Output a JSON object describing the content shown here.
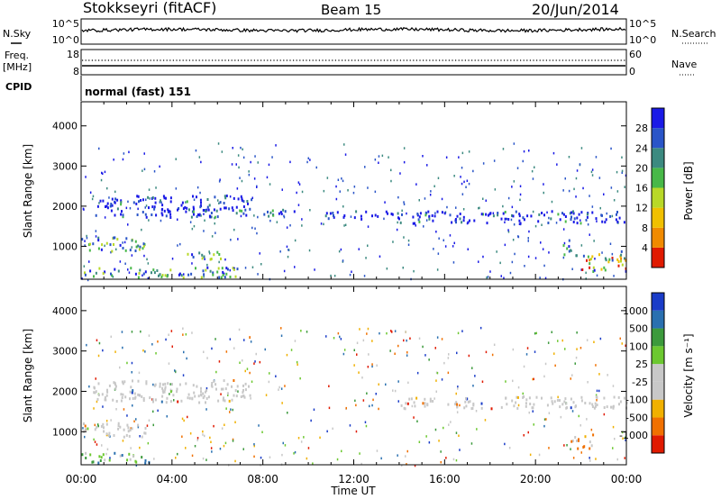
{
  "header": {
    "station": "Stokkseyri (fitACF)",
    "beam": "Beam 15",
    "date": "20/Jun/2014"
  },
  "params": {
    "nsky_label": "N.Sky",
    "nsky_top_tick": "10^5",
    "nsky_bottom_tick": "10^0",
    "nsearch_label": "N.Search",
    "nsearch_top_tick": "10^5",
    "nsearch_bottom_tick": "10^0",
    "freq_label": "Freq.",
    "freq_unit": "[MHz]",
    "freq_top_tick": "18",
    "freq_bottom_tick": "8",
    "nave_label": "Nave",
    "nave_top_tick": "60",
    "nave_bottom_tick": "0",
    "cpid_label": "CPID",
    "cpid_value": "normal (fast) 151"
  },
  "chart_data": [
    {
      "type": "heatmap",
      "name": "power",
      "ylabel": "Slant Range [km]",
      "ylim": [
        180,
        4600
      ],
      "y_ticks": [
        "1000",
        "2000",
        "3000",
        "4000"
      ],
      "colorbar_label": "Power [dB]",
      "colorbar_ticks": [
        "4",
        "8",
        "12",
        "16",
        "20",
        "24",
        "28"
      ],
      "colorbar_colors": [
        "#1a1ae6",
        "#2a55c8",
        "#3c8a80",
        "#48b848",
        "#b8d828",
        "#f0c000",
        "#f08a00",
        "#e01a00"
      ],
      "regions": [
        {
          "t": [
            0.5,
            7.5
          ],
          "r": [
            1750,
            2300
          ],
          "level": "low"
        },
        {
          "t": [
            8.0,
            9.5
          ],
          "r": [
            1700,
            1950
          ],
          "level": "low"
        },
        {
          "t": [
            10.5,
            14.0
          ],
          "r": [
            1700,
            1900
          ],
          "level": "low"
        },
        {
          "t": [
            14.0,
            24.0
          ],
          "r": [
            1600,
            1900
          ],
          "level": "low"
        },
        {
          "t": [
            0.0,
            2.8
          ],
          "r": [
            900,
            1250
          ],
          "level": "mixed"
        },
        {
          "t": [
            4.5,
            6.3
          ],
          "r": [
            700,
            900
          ],
          "level": "mixed"
        },
        {
          "t": [
            0.0,
            7.0
          ],
          "r": [
            250,
            500
          ],
          "level": "mixed"
        },
        {
          "t": [
            22.0,
            24.0
          ],
          "r": [
            400,
            900
          ],
          "level": "high"
        },
        {
          "t": [
            21.2,
            21.8
          ],
          "r": [
            800,
            1200
          ],
          "level": "mixed"
        }
      ]
    },
    {
      "type": "heatmap",
      "name": "velocity",
      "xlabel": "Time UT",
      "ylabel": "Slant Range [km]",
      "xlim": [
        0,
        24
      ],
      "ylim": [
        180,
        4600
      ],
      "x_ticks": [
        "00:00",
        "04:00",
        "08:00",
        "12:00",
        "16:00",
        "20:00",
        "00:00"
      ],
      "y_ticks": [
        "1000",
        "2000",
        "3000",
        "4000"
      ],
      "colorbar_label": "Velocity [m s⁻¹]",
      "colorbar_ticks": [
        "1000",
        "500",
        "100",
        "25",
        "-25",
        "-100",
        "-500",
        "-1000"
      ],
      "colorbar_colors": [
        "#1a3cc8",
        "#2a70b0",
        "#3c9a3c",
        "#6cc830",
        "#c8c8c8",
        "#c8c8c8",
        "#f0b000",
        "#f07000",
        "#e01a00"
      ],
      "regions": [
        {
          "t": [
            0.5,
            7.5
          ],
          "r": [
            1750,
            2300
          ],
          "level": "ground"
        },
        {
          "t": [
            14.0,
            24.0
          ],
          "r": [
            1600,
            1900
          ],
          "level": "ground"
        },
        {
          "t": [
            0.0,
            2.8
          ],
          "r": [
            900,
            1250
          ],
          "level": "ground"
        },
        {
          "t": [
            21.5,
            22.5
          ],
          "r": [
            600,
            1000
          ],
          "level": "negative"
        },
        {
          "t": [
            0.0,
            3.0
          ],
          "r": [
            250,
            500
          ],
          "level": "positive"
        }
      ]
    }
  ],
  "series_text": {
    "beam_label": "Beam 15"
  }
}
